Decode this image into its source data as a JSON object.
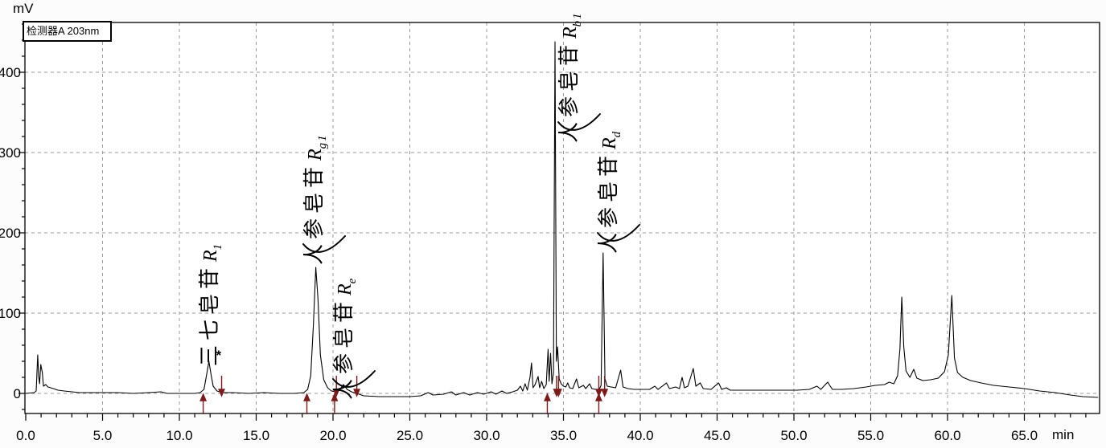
{
  "detector_label": "检测器A 203nm",
  "chart_data": {
    "type": "line",
    "title": "检测器A 203nm",
    "xlabel": "min",
    "ylabel": "mV",
    "x_range": [
      0,
      69.9
    ],
    "y_range": [
      -25,
      462
    ],
    "x_major_ticks": [
      0,
      5,
      10,
      15,
      20,
      25,
      30,
      35,
      40,
      45,
      50,
      55,
      60,
      65
    ],
    "x_tick_labels": [
      "0.0",
      "5.0",
      "10.0",
      "15.0",
      "20.0",
      "25.0",
      "30.0",
      "35.0",
      "40.0",
      "45.0",
      "50.0",
      "55.0",
      "60.0",
      "65.0"
    ],
    "x_minor_step": 1,
    "y_major_ticks": [
      0,
      100,
      200,
      300,
      400
    ],
    "y_tick_labels": [
      "0",
      "100",
      "200",
      "300",
      "400"
    ],
    "y_minor_step": 20,
    "grid": "dashed",
    "legend": "none",
    "colors": {
      "trace": "#000000",
      "grid": "#9a9a9a",
      "integration_marks": "#7d1a1a",
      "background": "#ffffff"
    },
    "peaks": [
      {
        "cn": "三七皂苷",
        "r": "R",
        "sub": "1",
        "rt_min": 11.9,
        "height_mV": 40
      },
      {
        "cn": "人参皂苷",
        "r": "R",
        "sub": "g1",
        "rt_min": 18.9,
        "height_mV": 157
      },
      {
        "cn": "人参皂苷",
        "r": "R",
        "sub": "e",
        "rt_min": 20.7,
        "height_mV": 11
      },
      {
        "cn": "人参皂苷",
        "r": "R",
        "sub": "b1",
        "rt_min": 34.4,
        "height_mV": 438
      },
      {
        "cn": "人参皂苷",
        "r": "R",
        "sub": "d",
        "rt_min": 37.6,
        "height_mV": 175
      }
    ],
    "apex_marker": {
      "symbol": "*",
      "t_min": 12.38,
      "mV": 42
    },
    "integration_marks": {
      "up_arrows_min": [
        11.55,
        18.3,
        20.1,
        33.95,
        37.3
      ],
      "down_arrows_min": [
        12.75,
        20.22,
        21.55,
        34.55,
        34.68,
        37.3,
        37.68
      ]
    },
    "trace": [
      [
        0,
        0
      ],
      [
        0.55,
        1
      ],
      [
        0.68,
        3
      ],
      [
        0.78,
        48
      ],
      [
        0.84,
        22
      ],
      [
        0.9,
        12
      ],
      [
        0.98,
        36
      ],
      [
        1.08,
        26
      ],
      [
        1.15,
        9
      ],
      [
        1.3,
        11
      ],
      [
        1.45,
        8
      ],
      [
        1.8,
        6
      ],
      [
        2.1,
        4
      ],
      [
        2.5,
        3
      ],
      [
        3,
        2
      ],
      [
        3.5,
        1
      ],
      [
        4.2,
        1
      ],
      [
        5,
        1
      ],
      [
        6,
        1
      ],
      [
        7,
        0
      ],
      [
        8,
        1
      ],
      [
        8.8,
        2
      ],
      [
        9.2,
        0
      ],
      [
        10,
        0
      ],
      [
        11,
        0
      ],
      [
        11.35,
        1
      ],
      [
        11.6,
        5
      ],
      [
        11.78,
        24
      ],
      [
        11.92,
        40
      ],
      [
        12.06,
        24
      ],
      [
        12.2,
        9
      ],
      [
        12.45,
        3
      ],
      [
        12.8,
        1
      ],
      [
        13.5,
        1
      ],
      [
        14.5,
        0
      ],
      [
        15.5,
        1
      ],
      [
        16.5,
        0
      ],
      [
        17.5,
        0
      ],
      [
        18.1,
        1
      ],
      [
        18.35,
        5
      ],
      [
        18.55,
        22
      ],
      [
        18.72,
        85
      ],
      [
        18.88,
        157
      ],
      [
        19.02,
        118
      ],
      [
        19.18,
        48
      ],
      [
        19.4,
        17
      ],
      [
        19.65,
        7
      ],
      [
        19.9,
        3
      ],
      [
        20.15,
        2
      ],
      [
        20.45,
        5
      ],
      [
        20.68,
        11
      ],
      [
        20.92,
        5
      ],
      [
        21.2,
        2
      ],
      [
        21.55,
        0
      ],
      [
        22,
        -3
      ],
      [
        23,
        -4
      ],
      [
        24,
        -4
      ],
      [
        25,
        -4
      ],
      [
        25.7,
        -3
      ],
      [
        26.2,
        1
      ],
      [
        26.5,
        -2
      ],
      [
        27.2,
        -1
      ],
      [
        27.7,
        2
      ],
      [
        28,
        -2
      ],
      [
        28.5,
        1
      ],
      [
        28.9,
        -2
      ],
      [
        29.4,
        1
      ],
      [
        29.8,
        -1
      ],
      [
        30.3,
        2
      ],
      [
        30.6,
        -1
      ],
      [
        31,
        3
      ],
      [
        31.3,
        0
      ],
      [
        31.7,
        2
      ],
      [
        32,
        4
      ],
      [
        32.2,
        9
      ],
      [
        32.35,
        3
      ],
      [
        32.5,
        12
      ],
      [
        32.65,
        4
      ],
      [
        32.82,
        20
      ],
      [
        32.92,
        38
      ],
      [
        33.02,
        7
      ],
      [
        33.15,
        11
      ],
      [
        33.35,
        21
      ],
      [
        33.45,
        7
      ],
      [
        33.58,
        15
      ],
      [
        33.72,
        6
      ],
      [
        33.88,
        11
      ],
      [
        34.0,
        55
      ],
      [
        34.07,
        15
      ],
      [
        34.16,
        50
      ],
      [
        34.25,
        12
      ],
      [
        34.35,
        26
      ],
      [
        34.45,
        438
      ],
      [
        34.54,
        40
      ],
      [
        34.62,
        58
      ],
      [
        34.72,
        18
      ],
      [
        34.85,
        12
      ],
      [
        35.0,
        9
      ],
      [
        35.15,
        8
      ],
      [
        35.28,
        13
      ],
      [
        35.4,
        7
      ],
      [
        35.6,
        6
      ],
      [
        35.85,
        18
      ],
      [
        36.0,
        7
      ],
      [
        36.3,
        10
      ],
      [
        36.45,
        6
      ],
      [
        36.7,
        12
      ],
      [
        36.85,
        6
      ],
      [
        37.1,
        5
      ],
      [
        37.3,
        4
      ],
      [
        37.45,
        10
      ],
      [
        37.58,
        175
      ],
      [
        37.7,
        18
      ],
      [
        37.85,
        9
      ],
      [
        38.1,
        8
      ],
      [
        38.4,
        7
      ],
      [
        38.72,
        29
      ],
      [
        38.88,
        8
      ],
      [
        39.2,
        6
      ],
      [
        39.6,
        5
      ],
      [
        40.1,
        5
      ],
      [
        40.6,
        5
      ],
      [
        40.95,
        9
      ],
      [
        41.15,
        5
      ],
      [
        41.7,
        13
      ],
      [
        41.9,
        6
      ],
      [
        42.3,
        8
      ],
      [
        42.55,
        6
      ],
      [
        42.72,
        20
      ],
      [
        42.88,
        7
      ],
      [
        43.1,
        9
      ],
      [
        43.45,
        31
      ],
      [
        43.62,
        9
      ],
      [
        43.9,
        13
      ],
      [
        44.1,
        6
      ],
      [
        44.6,
        5
      ],
      [
        45.1,
        13
      ],
      [
        45.3,
        5
      ],
      [
        45.6,
        7
      ],
      [
        45.85,
        4
      ],
      [
        46.4,
        4
      ],
      [
        47.2,
        4
      ],
      [
        48.2,
        4
      ],
      [
        49.2,
        4
      ],
      [
        50.2,
        4
      ],
      [
        51,
        5
      ],
      [
        51.5,
        9
      ],
      [
        51.75,
        5
      ],
      [
        52.2,
        14
      ],
      [
        52.5,
        5
      ],
      [
        53.1,
        5
      ],
      [
        53.9,
        6
      ],
      [
        54.7,
        8
      ],
      [
        55.3,
        10
      ],
      [
        55.9,
        11
      ],
      [
        56.2,
        14
      ],
      [
        56.5,
        12
      ],
      [
        56.75,
        22
      ],
      [
        56.9,
        55
      ],
      [
        57.02,
        120
      ],
      [
        57.15,
        58
      ],
      [
        57.3,
        28
      ],
      [
        57.55,
        20
      ],
      [
        57.8,
        30
      ],
      [
        58.0,
        19
      ],
      [
        58.4,
        16
      ],
      [
        58.9,
        17
      ],
      [
        59.4,
        19
      ],
      [
        59.8,
        27
      ],
      [
        60.05,
        48
      ],
      [
        60.28,
        122
      ],
      [
        60.45,
        44
      ],
      [
        60.65,
        26
      ],
      [
        61,
        20
      ],
      [
        61.5,
        16
      ],
      [
        62.2,
        13
      ],
      [
        63,
        10
      ],
      [
        64,
        8
      ],
      [
        65,
        6
      ],
      [
        66,
        3
      ],
      [
        67,
        1
      ],
      [
        68,
        -2
      ],
      [
        68.8,
        -4
      ],
      [
        69.8,
        -5
      ]
    ]
  }
}
